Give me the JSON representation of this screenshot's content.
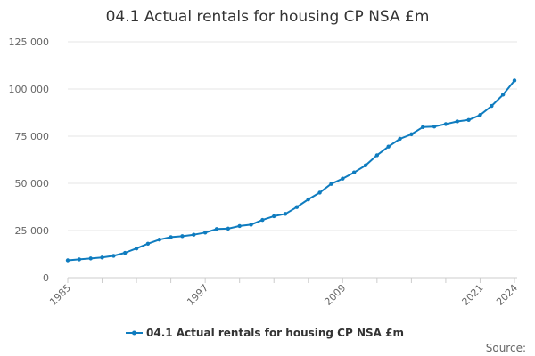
{
  "chart_data": {
    "type": "line",
    "title": "04.1 Actual rentals for housing CP NSA £m",
    "xlabel": "",
    "ylabel": "",
    "ylim": [
      0,
      125000
    ],
    "y_ticks": [
      0,
      25000,
      50000,
      75000,
      100000,
      125000
    ],
    "y_tick_labels": [
      "0",
      "25 000",
      "50 000",
      "75 000",
      "100 000",
      "125 000"
    ],
    "x_tick_labels": [
      "1985",
      "1997",
      "2009",
      "2021",
      "2024"
    ],
    "x_tick_years": [
      1985,
      1997,
      2009,
      2021,
      2024
    ],
    "xlim": [
      1985,
      2024
    ],
    "grid": true,
    "legend_position": "bottom",
    "source_label": "Source:",
    "colors": {
      "line": "#0f7cbf",
      "grid": "#e6e6e6",
      "axis": "#cccccc"
    },
    "x": [
      1985,
      1986,
      1987,
      1988,
      1989,
      1990,
      1991,
      1992,
      1993,
      1994,
      1995,
      1996,
      1997,
      1998,
      1999,
      2000,
      2001,
      2002,
      2003,
      2004,
      2005,
      2006,
      2007,
      2008,
      2009,
      2010,
      2011,
      2012,
      2013,
      2014,
      2015,
      2016,
      2017,
      2018,
      2019,
      2020,
      2021,
      2022,
      2023,
      2024
    ],
    "series": [
      {
        "name": "04.1 Actual rentals for housing CP NSA £m",
        "values": [
          9200,
          9700,
          10200,
          10700,
          11600,
          13200,
          15500,
          18000,
          20200,
          21500,
          22000,
          22800,
          23900,
          25800,
          26000,
          27400,
          28100,
          30600,
          32600,
          33800,
          37400,
          41500,
          45100,
          49700,
          52500,
          55800,
          59500,
          64900,
          69500,
          73600,
          76000,
          79800,
          80100,
          81400,
          82800,
          83600,
          86200,
          91000,
          97000,
          104500
        ]
      }
    ]
  }
}
